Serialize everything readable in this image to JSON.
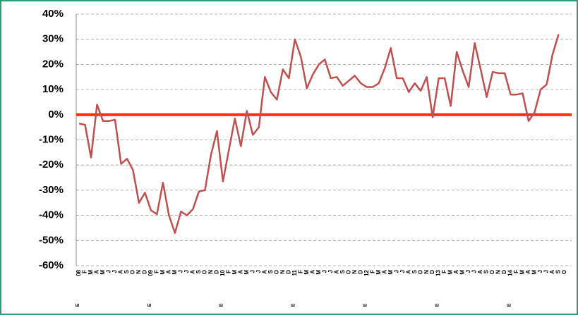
{
  "chart_data": {
    "type": "line",
    "categories": [
      "08",
      "F",
      "M",
      "A",
      "M",
      "J",
      "J",
      "A",
      "S",
      "O",
      "N",
      "D",
      "09",
      "F",
      "M",
      "A",
      "M",
      "J",
      "J",
      "A",
      "S",
      "O",
      "N",
      "D",
      "10",
      "F",
      "M",
      "A",
      "M",
      "J",
      "J",
      "A",
      "S",
      "O",
      "N",
      "D",
      "11",
      "F",
      "M",
      "A",
      "M",
      "J",
      "J",
      "A",
      "S",
      "O",
      "N",
      "D",
      "12",
      "F",
      "M",
      "A",
      "M",
      "J",
      "J",
      "A",
      "S",
      "O",
      "N",
      "D",
      "13",
      "F",
      "M",
      "A",
      "M",
      "J",
      "J",
      "A",
      "S",
      "O",
      "N",
      "D",
      "14",
      "F",
      "M",
      "A",
      "M",
      "J",
      "J",
      "A",
      "S",
      "O"
    ],
    "series": [
      {
        "color": "#c0504d",
        "values": [
          -3.5,
          -4,
          -17,
          4,
          -2.5,
          -2.5,
          -2,
          -19.5,
          -17.5,
          -22,
          -35,
          -31,
          -38,
          -39.5,
          -27,
          -40,
          -47,
          -38.5,
          -40,
          -37.5,
          -30.5,
          -30,
          -16,
          -6.5,
          -26.5,
          -14,
          -1.5,
          -12.5,
          1.5,
          -8,
          -5,
          15,
          9,
          6,
          18,
          14.5,
          30,
          23,
          10.5,
          16,
          20,
          22,
          14.5,
          15,
          11.5,
          13.5,
          15.5,
          12.5,
          11,
          11,
          12.5,
          18.5,
          26.5,
          14.5,
          14.5,
          9,
          12.5,
          9.5,
          15,
          -1,
          14.5,
          14.5,
          3.5,
          25,
          17.5,
          11,
          28.5,
          18,
          7,
          17,
          16.5,
          16.5,
          8,
          8,
          8.5,
          -2.5,
          1,
          10,
          12,
          24,
          32,
          null
        ]
      }
    ],
    "ylim": [
      -60,
      40
    ],
    "yticks": [
      {
        "value": -60,
        "label": "-60%"
      },
      {
        "value": -50,
        "label": "-50%"
      },
      {
        "value": -40,
        "label": "-40%"
      },
      {
        "value": -30,
        "label": "-30%"
      },
      {
        "value": -20,
        "label": "-20%"
      },
      {
        "value": -10,
        "label": "-10%"
      },
      {
        "value": 0,
        "label": "0%"
      },
      {
        "value": 10,
        "label": "10%"
      },
      {
        "value": 20,
        "label": "20%"
      },
      {
        "value": 30,
        "label": "30%"
      },
      {
        "value": 40,
        "label": "40%"
      }
    ],
    "grid": true,
    "zero_line_color": "#ff2a00",
    "group_labels": [
      "E",
      "E",
      "E",
      "E",
      "E",
      "E",
      "E"
    ]
  }
}
